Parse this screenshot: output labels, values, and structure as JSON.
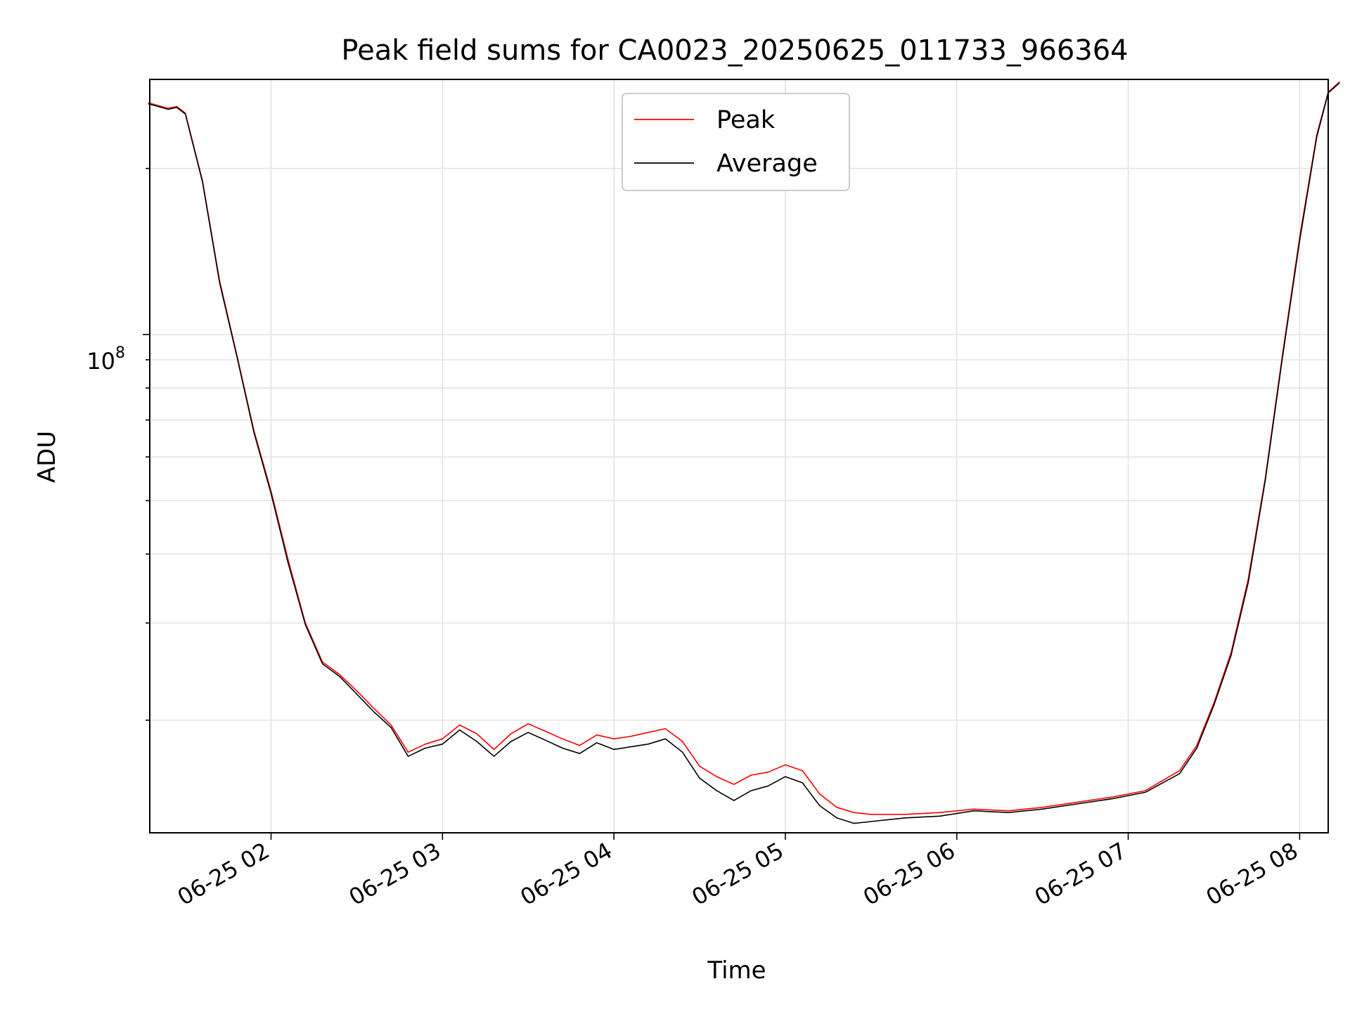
{
  "chart_data": {
    "type": "line",
    "title": "Peak field sums for CA0023_20250625_011733_966364",
    "xlabel": "Time",
    "ylabel": "ADU",
    "y_scale": "log",
    "x_ticks": [
      "06-25 02",
      "06-25 03",
      "06-25 04",
      "06-25 05",
      "06-25 06",
      "06-25 07",
      "06-25 08"
    ],
    "y_major_tick": {
      "base": "10",
      "exponent": "8"
    },
    "x_range": [
      "2025-06-25 01:17:33",
      "2025-06-25 08:10:00"
    ],
    "y_range": [
      12500000,
      290000000
    ],
    "grid": true,
    "legend_placement": "upper-center",
    "series": [
      {
        "name": "Peak",
        "color": "#ff0000",
        "points": [
          [
            "01:17",
            263000000
          ],
          [
            "01:24",
            257000000
          ],
          [
            "01:27",
            259000000
          ],
          [
            "01:30",
            252000000
          ],
          [
            "01:36",
            190000000
          ],
          [
            "01:42",
            125000000
          ],
          [
            "01:48",
            92000000
          ],
          [
            "01:54",
            67000000
          ],
          [
            "02:00",
            52000000
          ],
          [
            "02:06",
            39000000
          ],
          [
            "02:12",
            30000000
          ],
          [
            "02:18",
            25500000
          ],
          [
            "02:24",
            24200000
          ],
          [
            "02:30",
            22600000
          ],
          [
            "02:36",
            21000000
          ],
          [
            "02:42",
            19600000
          ],
          [
            "02:48",
            17500000
          ],
          [
            "02:54",
            18100000
          ],
          [
            "03:00",
            18500000
          ],
          [
            "03:06",
            19600000
          ],
          [
            "03:12",
            18900000
          ],
          [
            "03:18",
            17700000
          ],
          [
            "03:24",
            18900000
          ],
          [
            "03:30",
            19700000
          ],
          [
            "03:36",
            19100000
          ],
          [
            "03:42",
            18500000
          ],
          [
            "03:48",
            18000000
          ],
          [
            "03:54",
            18800000
          ],
          [
            "04:00",
            18500000
          ],
          [
            "04:06",
            18700000
          ],
          [
            "04:12",
            19000000
          ],
          [
            "04:18",
            19300000
          ],
          [
            "04:24",
            18300000
          ],
          [
            "04:30",
            16500000
          ],
          [
            "04:36",
            15800000
          ],
          [
            "04:42",
            15300000
          ],
          [
            "04:48",
            15900000
          ],
          [
            "04:54",
            16100000
          ],
          [
            "05:00",
            16600000
          ],
          [
            "05:06",
            16200000
          ],
          [
            "05:12",
            14700000
          ],
          [
            "05:18",
            13900000
          ],
          [
            "05:24",
            13600000
          ],
          [
            "05:30",
            13500000
          ],
          [
            "05:42",
            13500000
          ],
          [
            "05:54",
            13600000
          ],
          [
            "06:06",
            13800000
          ],
          [
            "06:18",
            13700000
          ],
          [
            "06:30",
            13900000
          ],
          [
            "06:42",
            14200000
          ],
          [
            "06:54",
            14500000
          ],
          [
            "07:06",
            14900000
          ],
          [
            "07:18",
            16200000
          ],
          [
            "07:24",
            18000000
          ],
          [
            "07:30",
            21500000
          ],
          [
            "07:36",
            26500000
          ],
          [
            "07:42",
            36000000
          ],
          [
            "07:48",
            55000000
          ],
          [
            "07:54",
            92000000
          ],
          [
            "08:00",
            150000000
          ],
          [
            "08:06",
            230000000
          ],
          [
            "08:10",
            275000000
          ],
          [
            "08:14",
            287000000
          ]
        ]
      },
      {
        "name": "Average",
        "color": "#000000",
        "points": [
          [
            "01:17",
            262000000
          ],
          [
            "01:24",
            256000000
          ],
          [
            "01:27",
            258000000
          ],
          [
            "01:30",
            251000000
          ],
          [
            "01:36",
            189000000
          ],
          [
            "01:42",
            124000000
          ],
          [
            "01:48",
            91500000
          ],
          [
            "01:54",
            66500000
          ],
          [
            "02:00",
            51500000
          ],
          [
            "02:06",
            38500000
          ],
          [
            "02:12",
            29800000
          ],
          [
            "02:18",
            25300000
          ],
          [
            "02:24",
            24000000
          ],
          [
            "02:30",
            22300000
          ],
          [
            "02:36",
            20700000
          ],
          [
            "02:42",
            19400000
          ],
          [
            "02:48",
            17200000
          ],
          [
            "02:54",
            17800000
          ],
          [
            "03:00",
            18100000
          ],
          [
            "03:06",
            19200000
          ],
          [
            "03:12",
            18300000
          ],
          [
            "03:18",
            17200000
          ],
          [
            "03:24",
            18300000
          ],
          [
            "03:30",
            19000000
          ],
          [
            "03:36",
            18400000
          ],
          [
            "03:42",
            17800000
          ],
          [
            "03:48",
            17400000
          ],
          [
            "03:54",
            18200000
          ],
          [
            "04:00",
            17700000
          ],
          [
            "04:06",
            17900000
          ],
          [
            "04:12",
            18100000
          ],
          [
            "04:18",
            18500000
          ],
          [
            "04:24",
            17500000
          ],
          [
            "04:30",
            15700000
          ],
          [
            "04:36",
            14900000
          ],
          [
            "04:42",
            14300000
          ],
          [
            "04:48",
            14900000
          ],
          [
            "04:54",
            15200000
          ],
          [
            "05:00",
            15800000
          ],
          [
            "05:06",
            15400000
          ],
          [
            "05:12",
            14000000
          ],
          [
            "05:18",
            13300000
          ],
          [
            "05:24",
            13000000
          ],
          [
            "05:30",
            13100000
          ],
          [
            "05:42",
            13300000
          ],
          [
            "05:54",
            13400000
          ],
          [
            "06:06",
            13700000
          ],
          [
            "06:18",
            13600000
          ],
          [
            "06:30",
            13800000
          ],
          [
            "06:42",
            14100000
          ],
          [
            "06:54",
            14400000
          ],
          [
            "07:06",
            14800000
          ],
          [
            "07:18",
            16000000
          ],
          [
            "07:24",
            17800000
          ],
          [
            "07:30",
            21300000
          ],
          [
            "07:36",
            26200000
          ],
          [
            "07:42",
            35500000
          ],
          [
            "07:48",
            54500000
          ],
          [
            "07:54",
            91000000
          ],
          [
            "08:00",
            148000000
          ],
          [
            "08:06",
            228000000
          ],
          [
            "08:10",
            274000000
          ],
          [
            "08:14",
            286000000
          ]
        ]
      }
    ]
  }
}
